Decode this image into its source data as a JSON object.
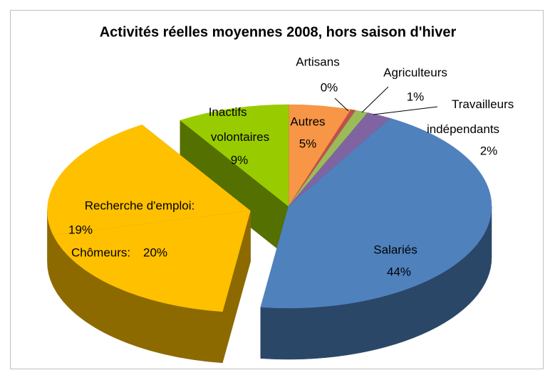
{
  "chart_data": {
    "type": "pie3d",
    "title": "Activités réelles moyennes 2008, hors saison d'hiver",
    "categories": [
      "Autres",
      "Artisans",
      "Agriculteurs",
      "Travailleurs indépendants",
      "Salariés",
      "Recherche d'emploi:",
      "Chômeurs:",
      "Inactifs volontaires"
    ],
    "values": [
      5,
      0.4,
      1,
      2,
      44,
      19,
      20,
      9
    ],
    "value_labels": [
      "5%",
      "0%",
      "1%",
      "2%",
      "44%",
      "19%",
      "20%",
      "9%"
    ],
    "colors": [
      "#f79646",
      "#c0504d",
      "#9bbb59",
      "#8064a2",
      "#4f81bd",
      "#ffc000",
      "#ffc000",
      "#99cc00"
    ],
    "explode": [
      0,
      0,
      0,
      0,
      0,
      1,
      1,
      0
    ]
  }
}
